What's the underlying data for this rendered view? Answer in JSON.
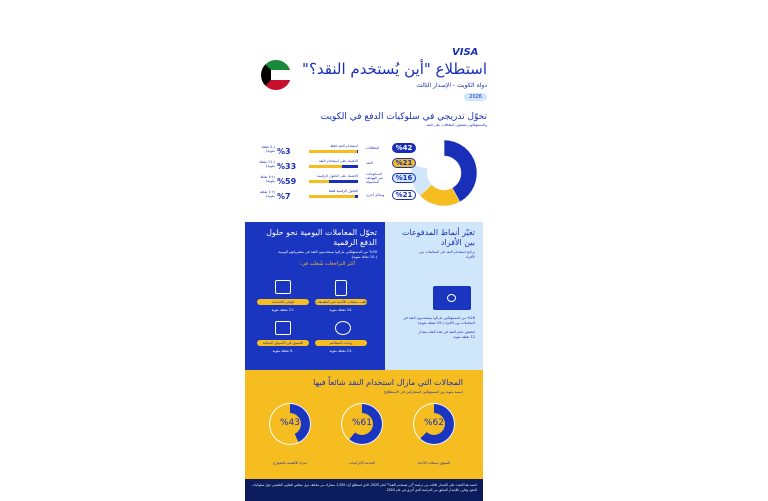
{
  "header": {
    "brand": "VISA",
    "title": "استطلاع \"أين يُستخدم النقد؟\"",
    "subtitle": "دولة الكويت - الإصدار الثالث",
    "year": "2026"
  },
  "section1": {
    "title": "تحوّل تدريجي في سلوكيات الدفع في الكويت",
    "subtitle": "والمستهلكون يفضلون البطاقات على النقد",
    "legend": [
      {
        "pct": "%42",
        "label": "البطاقات",
        "color": "#1a2fb8"
      },
      {
        "pct": "%21",
        "label": "النقد",
        "color": "#f5bd1f"
      },
      {
        "pct": "%16",
        "label": "المدفوعات عبر الهواتف المحمولة",
        "color": "#cfe6fb"
      },
      {
        "pct": "%21",
        "label": "وسائل أخرى",
        "color": "#ffffff"
      }
    ],
    "donut_values": [
      42,
      21,
      16,
      21
    ],
    "rows": [
      {
        "label": "استخدام النقد فقط",
        "pct": "%3",
        "points": "(-2 نقطة مئوية)",
        "blue_share": 3
      },
      {
        "label": "الاعتماد على استخدام النقد",
        "pct": "%33",
        "points": "(-11 نقطة مئوية)",
        "blue_share": 33
      },
      {
        "label": "الاعتماد على الحلول الرقمية",
        "pct": "%59",
        "points": "(+4 نقاط مئوية)",
        "blue_share": 59
      },
      {
        "label": "الحلول الرقمية فقط",
        "pct": "%7",
        "points": "(+1 نقطة مئوية)",
        "blue_share": 7
      }
    ]
  },
  "section2": {
    "title": "تحوّل المعاملات اليومية نحو حلول الدفع الرقمية",
    "desc": "%30 من المستهلكين مازالوا يستخدمون النقد في مشترياتهم اليومية (-10 نقاط مئوية)",
    "sub": "أكثر التراجعات شُجلت في:",
    "items": [
      {
        "label": "فواتير الخدمات",
        "change": "-21 نقطة مئوية",
        "icon": "bill-icon"
      },
      {
        "label": "طلب منتجات الأغذية عبر التطبيقات",
        "change": "-24 نقطة مئوية",
        "icon": "phone-food-icon"
      },
      {
        "label": "التسوق في الأسواق المحلية",
        "change": "-9 نقطة مئوية",
        "icon": "market-icon"
      },
      {
        "label": "وجبات المطاعم",
        "change": "-13 نقطة مئوية",
        "icon": "restaurant-icon"
      }
    ]
  },
  "section3": {
    "title": "تغيّر أنماط المدفوعات بين الأفراد",
    "subtitle": "تراجع استخدام النقد في المعاملات بين الأفراد",
    "stat": "%28 من المستهلكين مازالوا يستخدمون النقد في المعاملات بين الأفراد (-19 نقطة مئوية)",
    "note": "انخفض حجم النقد في هذه الفئة بمقدار 12 نقطة مئوية"
  },
  "section4": {
    "title": "المجالات التي مازال استخدام النقد شائعاً فيها",
    "subtitle": "(نسبة مئوية من المستهلكين المشاركين في الاستطلاع)",
    "rings": [
      {
        "pct": "%62",
        "value": 62,
        "label": "التسوّق بمحلات الأحياء"
      },
      {
        "pct": "%61",
        "value": 61,
        "label": "الخدمة الإكراميات"
      },
      {
        "pct": "%43",
        "value": 43,
        "label": "شراء الأطعمة بالشوارع"
      }
    ]
  },
  "footer": {
    "text": "اعتمد هذا البحث على الإصدار الثالث من دراسة \"أين يُستخدم النقد؟\" لعام 2025، الذي استطلع آراء 1,200 مشارك من مختلف دول مجلس التعاون الخليجي حول سلوكيات الدفع، وقارن بالإصدار السابق من الدراسة الذي أُجري في عام 2024."
  },
  "colors": {
    "blue": "#1a35c0",
    "yellow": "#f5bd1f",
    "light": "#cfe6fb",
    "navy": "#0c1c5c"
  }
}
